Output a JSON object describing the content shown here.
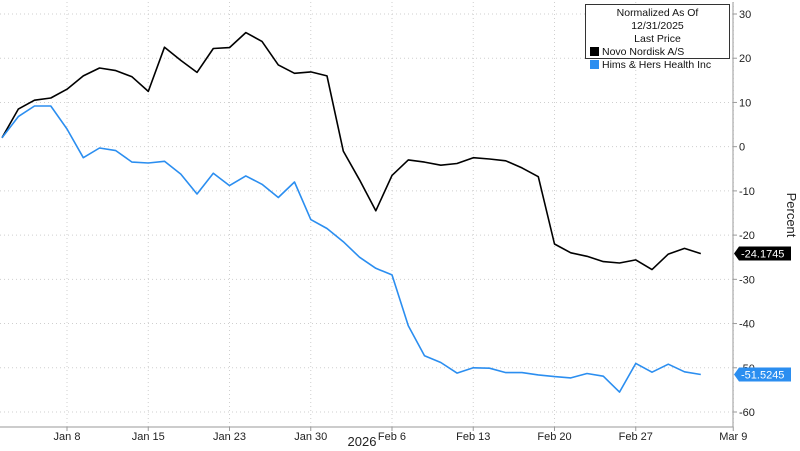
{
  "legend": {
    "line1": "Normalized As Of 12/31/2025",
    "line2": "Last Price"
  },
  "chart_data": {
    "type": "line",
    "ylabel": "Percent",
    "xlabel": "2026",
    "ylim": [
      -62,
      32
    ],
    "yticks": [
      30,
      20,
      10,
      0,
      -10,
      -20,
      -30,
      -40,
      -50,
      -60
    ],
    "xticks": [
      {
        "label": "Jan 8",
        "index": 4
      },
      {
        "label": "Jan 15",
        "index": 9
      },
      {
        "label": "Jan 23",
        "index": 14
      },
      {
        "label": "Jan 30",
        "index": 19
      },
      {
        "label": "Feb 6",
        "index": 24
      },
      {
        "label": "Feb 13",
        "index": 29
      },
      {
        "label": "Feb 20",
        "index": 34
      },
      {
        "label": "Feb 27",
        "index": 39
      },
      {
        "label": "Mar 9",
        "index": 45
      }
    ],
    "series": [
      {
        "name": "Novo Nordisk A/S",
        "color": "#000000",
        "last_label": "-24.1745",
        "values": [
          2.0,
          8.5,
          10.5,
          11.0,
          13.0,
          16.0,
          17.8,
          17.2,
          15.8,
          12.5,
          22.5,
          19.5,
          16.8,
          22.2,
          22.4,
          25.8,
          23.8,
          18.5,
          16.6,
          16.9,
          16.0,
          -1.0,
          -7.5,
          -14.5,
          -6.5,
          -3.0,
          -3.5,
          -4.2,
          -3.8,
          -2.5,
          -2.8,
          -3.2,
          -4.8,
          -6.8,
          -22.0,
          -24.0,
          -24.8,
          -26.0,
          -26.3,
          -25.6,
          -27.8,
          -24.3,
          -23.0,
          -24.17
        ]
      },
      {
        "name": "Hims & Hers Health Inc",
        "color": "#2b8ef0",
        "last_label": "-51.5245",
        "values": [
          2.0,
          6.8,
          9.2,
          9.2,
          4.0,
          -2.5,
          -0.3,
          -0.9,
          -3.5,
          -3.7,
          -3.3,
          -6.2,
          -10.7,
          -6.0,
          -8.8,
          -6.6,
          -8.5,
          -11.5,
          -8.0,
          -16.5,
          -18.5,
          -21.5,
          -25.0,
          -27.5,
          -29.0,
          -40.5,
          -47.3,
          -48.8,
          -51.2,
          -50.0,
          -50.1,
          -51.1,
          -51.1,
          -51.6,
          -52.0,
          -52.3,
          -51.3,
          -51.9,
          -55.5,
          -49.0,
          -51.0,
          -49.2,
          -50.9,
          -51.52
        ]
      }
    ]
  }
}
